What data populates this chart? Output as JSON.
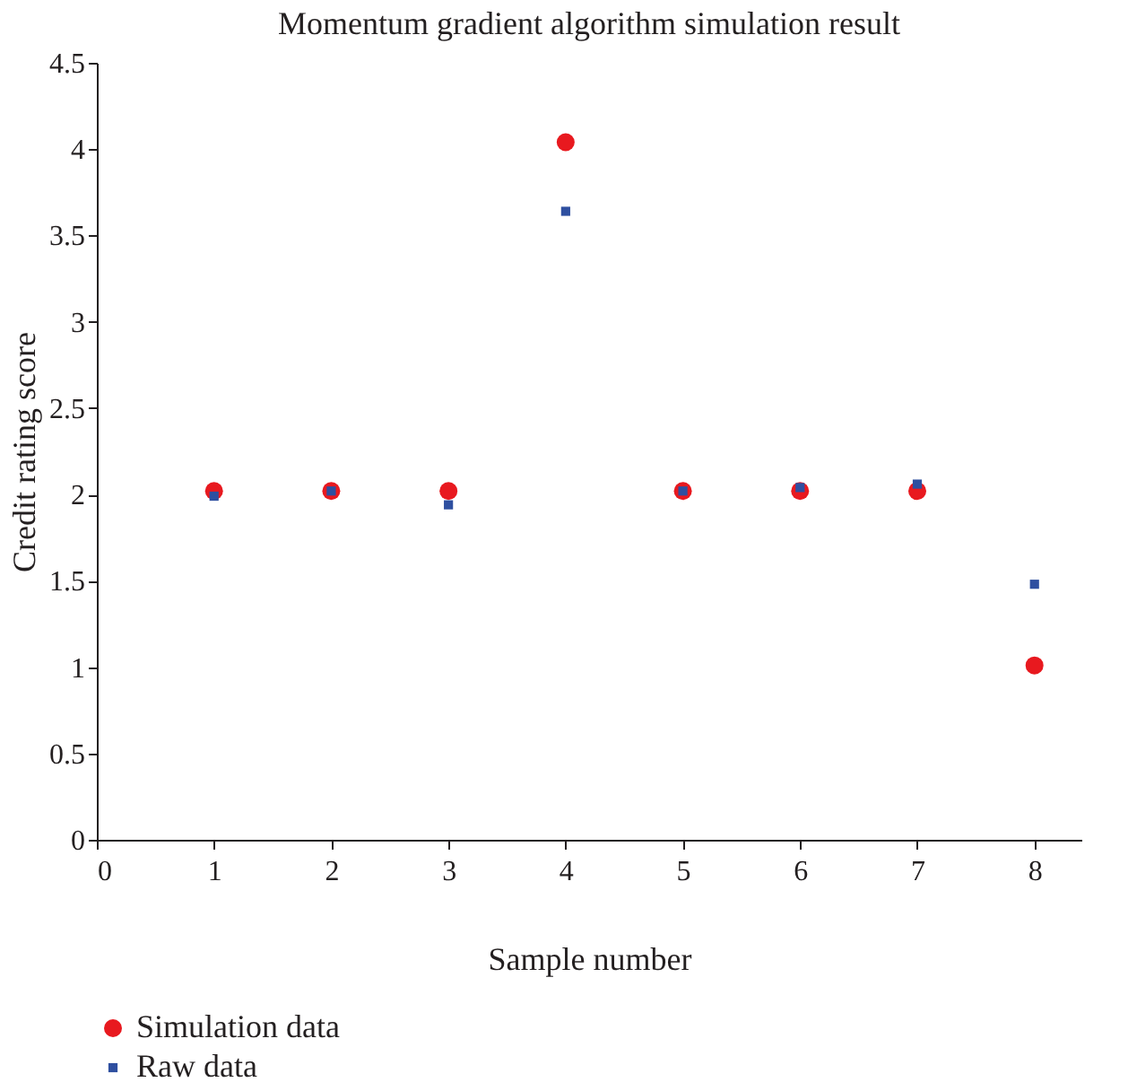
{
  "chart_data": {
    "type": "scatter",
    "title": "Momentum gradient algorithm simulation result",
    "xlabel": "Sample number",
    "ylabel": "Credit rating score",
    "x": [
      1,
      2,
      3,
      4,
      5,
      6,
      7,
      8
    ],
    "series": [
      {
        "name": "Simulation data",
        "color": "#e8191f",
        "marker": "circle",
        "values": [
          2.02,
          2.02,
          2.02,
          4.04,
          2.02,
          2.02,
          2.02,
          1.01
        ]
      },
      {
        "name": "Raw data",
        "color": "#2e4fa0",
        "marker": "square",
        "values": [
          1.99,
          2.02,
          1.94,
          3.64,
          2.02,
          2.04,
          2.06,
          1.48
        ]
      }
    ],
    "xlim": [
      0,
      8.4
    ],
    "xticks": [
      0,
      1,
      2,
      3,
      4,
      5,
      6,
      7,
      8
    ],
    "ylim": [
      0,
      4.5
    ],
    "yticks": [
      0,
      0.5,
      1,
      1.5,
      2,
      2.5,
      3,
      3.5,
      4,
      4.5
    ],
    "grid": false,
    "legend": "bottom"
  }
}
